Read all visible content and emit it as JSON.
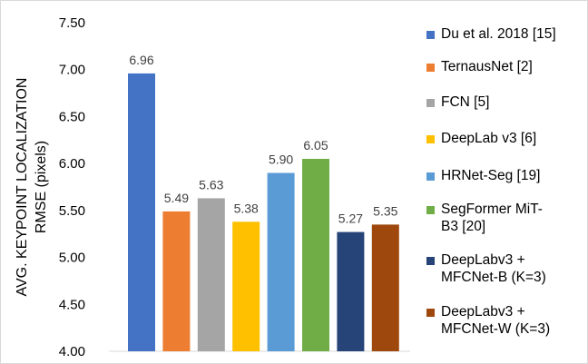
{
  "chart_data": {
    "type": "bar",
    "title": "",
    "xlabel": "",
    "ylabel": "AVG. KEYPOINT LOCALIZATION RMSE (pixels)",
    "ylabel_lines": [
      "AVG. KEYPOINT LOCALIZATION",
      "RMSE (pixels)"
    ],
    "ylim": [
      4.0,
      7.5
    ],
    "yticks": [
      "4.00",
      "4.50",
      "5.00",
      "5.50",
      "6.00",
      "6.50",
      "7.00",
      "7.50"
    ],
    "grid": false,
    "legend_position": "right",
    "series": [
      {
        "name": "Du et al. 2018 [15]",
        "value": 6.96,
        "label": "6.96",
        "color": "#4472c4"
      },
      {
        "name": "TernausNet [2]",
        "value": 5.49,
        "label": "5.49",
        "color": "#ed7d31"
      },
      {
        "name": "FCN [5]",
        "value": 5.63,
        "label": "5.63",
        "color": "#a5a5a5"
      },
      {
        "name": "DeepLab v3 [6]",
        "value": 5.38,
        "label": "5.38",
        "color": "#ffc000"
      },
      {
        "name": "HRNet-Seg [19]",
        "value": 5.9,
        "label": "5.90",
        "color": "#5b9bd5"
      },
      {
        "name": "SegFormer MiT-\nB3 [20]",
        "value": 6.05,
        "label": "6.05",
        "color": "#70ad47"
      },
      {
        "name": "DeepLabv3 +\nMFCNet-B (K=3)",
        "value": 5.27,
        "label": "5.27",
        "color": "#264478"
      },
      {
        "name": "DeepLabv3 +\nMFCNet-W (K=3)",
        "value": 5.35,
        "label": "5.35",
        "color": "#9e480e"
      }
    ]
  }
}
